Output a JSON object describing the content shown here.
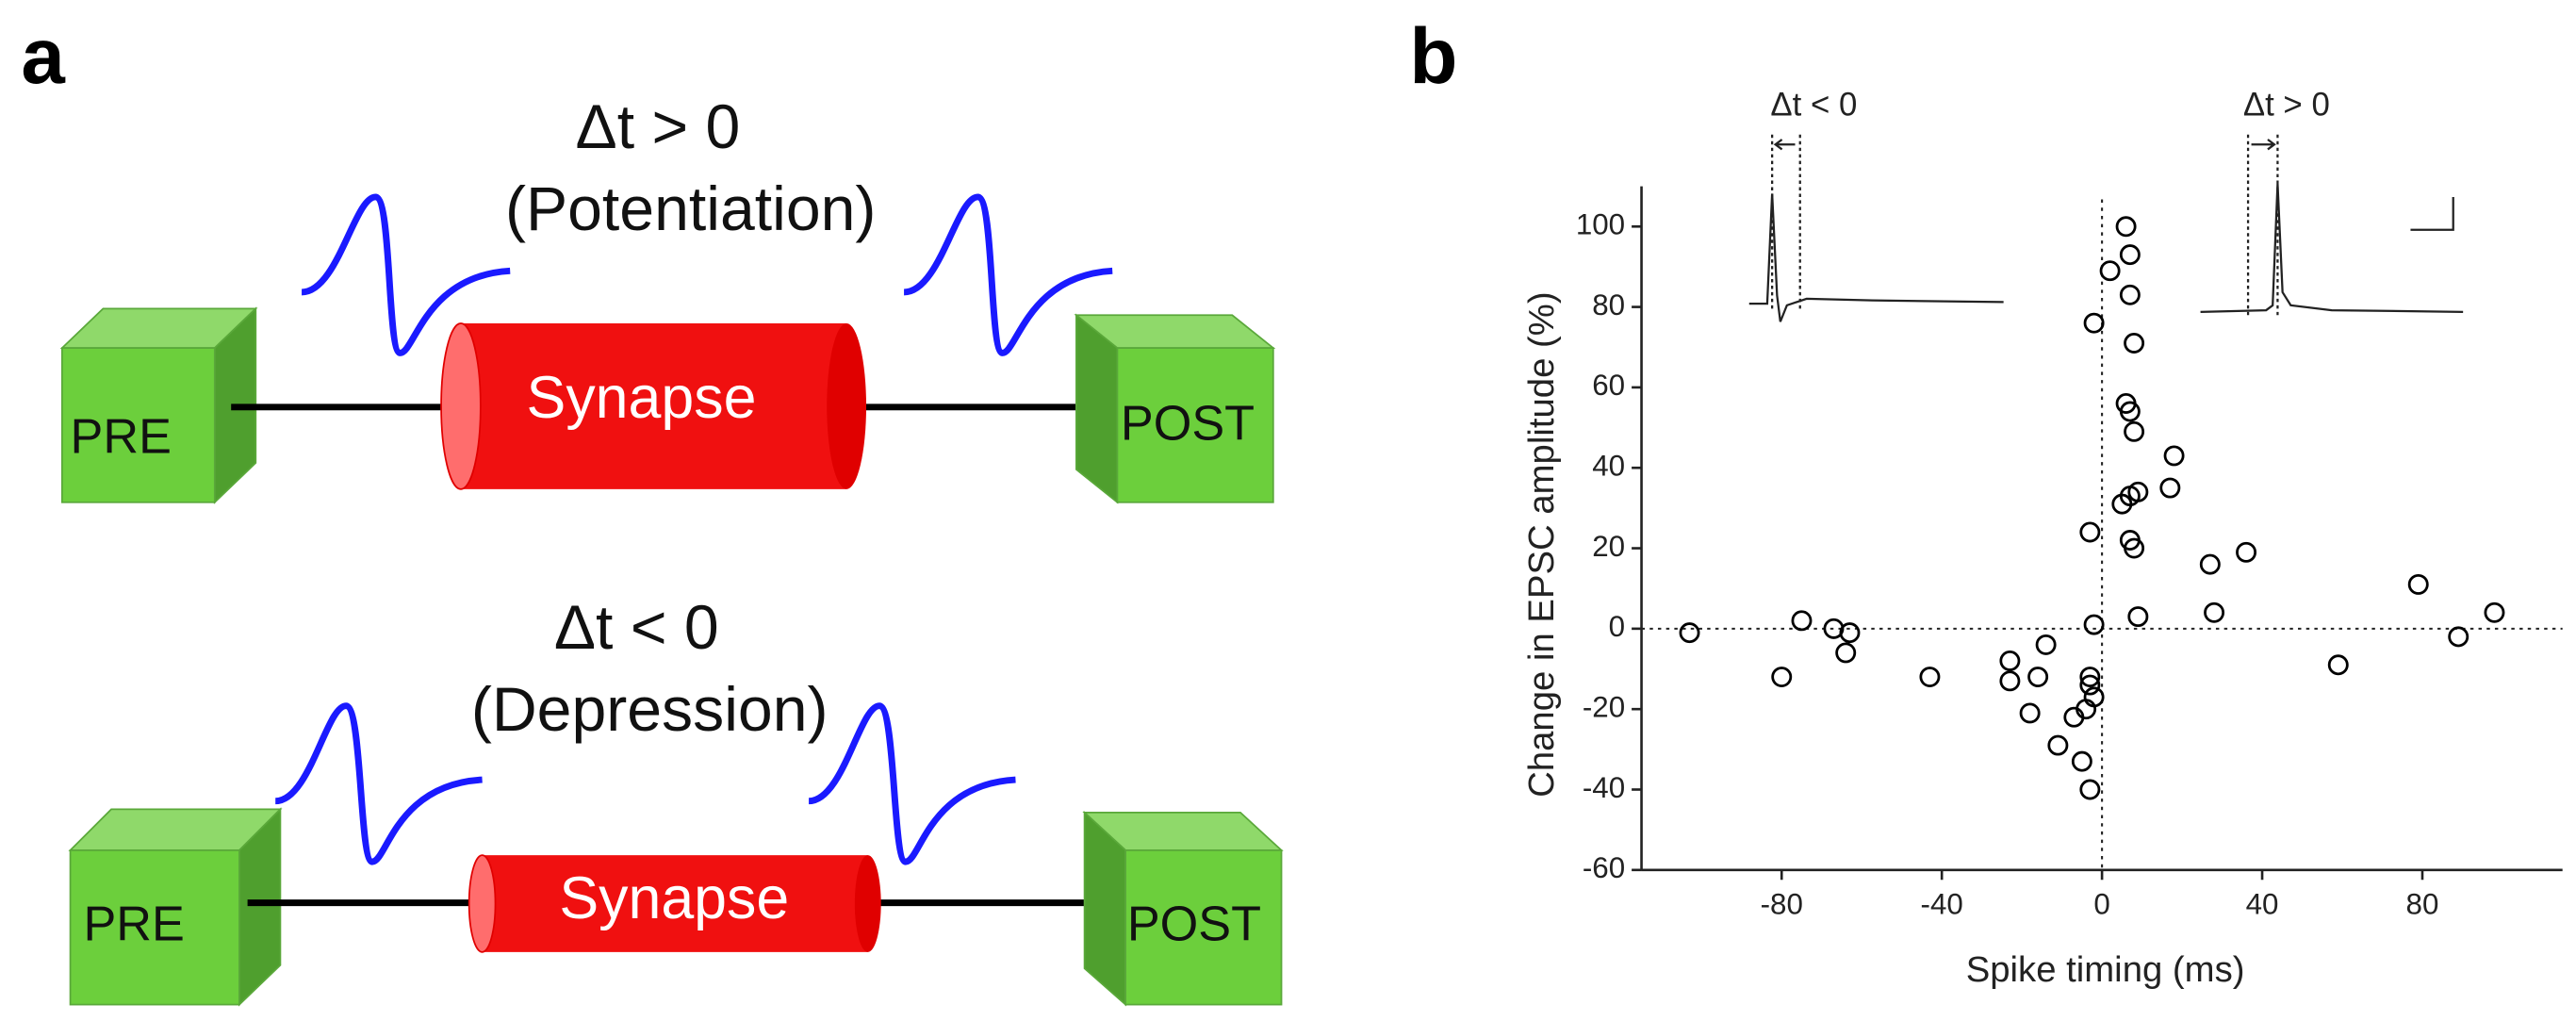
{
  "panel_a": {
    "label": "a",
    "top": {
      "condition": "Δt > 0",
      "effect": "(Potentiation)",
      "pre": "PRE",
      "synapse": "Synapse",
      "post": "POST"
    },
    "bottom": {
      "condition": "Δt < 0",
      "effect": "(Depression)",
      "pre": "PRE",
      "synapse": "Synapse",
      "post": "POST"
    }
  },
  "chart_data": {
    "type": "scatter",
    "panel_label": "b",
    "x_label": "Spike timing (ms)",
    "y_label": "Change in EPSC amplitude (%)",
    "insets": [
      "Δt < 0",
      "Δt > 0"
    ],
    "x": [
      -103,
      -80,
      -75,
      -67,
      -63,
      -64,
      -43,
      -23,
      -23,
      -18,
      -16,
      -14,
      -11,
      -7,
      -5,
      -4,
      -3,
      -3,
      -2,
      -3,
      -2,
      -3,
      -2,
      2,
      6,
      7,
      7,
      8,
      6,
      7,
      8,
      5,
      9,
      7,
      7,
      8,
      9,
      18,
      17,
      27,
      28,
      36,
      59,
      79,
      89,
      98
    ],
    "values": [
      -1,
      -12,
      2,
      0,
      -1,
      -6,
      -12,
      -8,
      -13,
      -21,
      -12,
      -4,
      -29,
      -22,
      -33,
      -20,
      -14,
      -12,
      -17,
      -40,
      1,
      24,
      76,
      89,
      100,
      93,
      83,
      71,
      56,
      54,
      49,
      31,
      34,
      33,
      22,
      20,
      3,
      43,
      35,
      16,
      4,
      19,
      -9,
      11,
      -2,
      4
    ],
    "color": "#000000",
    "xlim": [
      -115,
      115
    ],
    "ylim": [
      -60,
      110
    ],
    "xticks": [
      -80,
      -40,
      0,
      40,
      80
    ],
    "yticks": [
      -60,
      -40,
      -20,
      0,
      20,
      40,
      60,
      80,
      100
    ],
    "zero_lines": true
  }
}
